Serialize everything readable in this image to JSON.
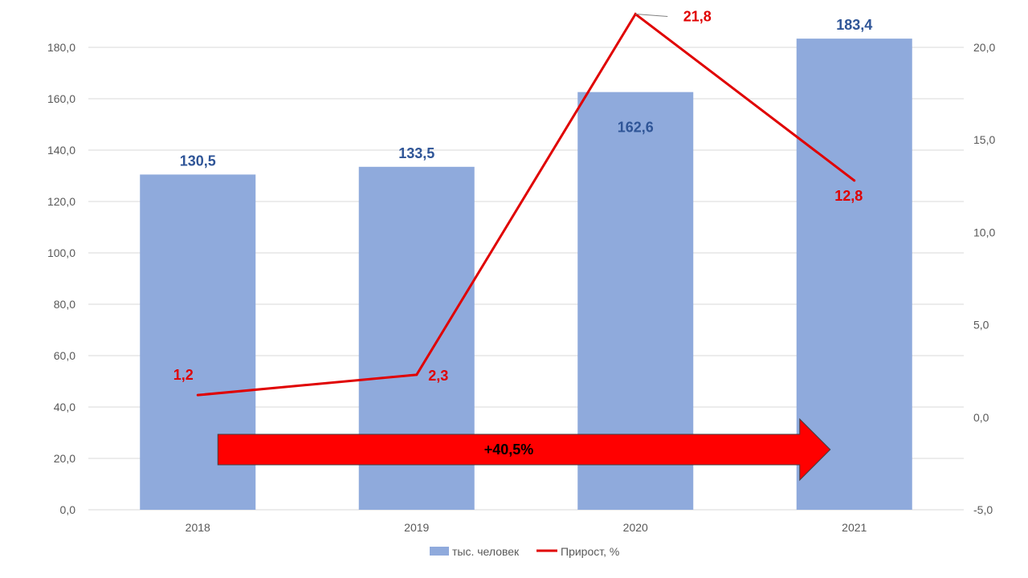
{
  "chart_data": {
    "type": "bar",
    "categories": [
      "2018",
      "2019",
      "2020",
      "2021"
    ],
    "series": [
      {
        "name": "тыс. человек",
        "type": "bar",
        "axis": "left",
        "values": [
          130.5,
          133.5,
          162.6,
          183.4
        ],
        "labels": [
          "130,5",
          "133,5",
          "162,6",
          "183,4"
        ]
      },
      {
        "name": "Прирост, %",
        "type": "line",
        "axis": "right",
        "values": [
          1.2,
          2.3,
          21.8,
          12.8
        ],
        "labels": [
          "1,2",
          "2,3",
          "21,8",
          "12,8"
        ]
      }
    ],
    "y_left": {
      "min": 0,
      "max": 180,
      "step": 20,
      "ticks": [
        "0,0",
        "20,0",
        "40,0",
        "60,0",
        "80,0",
        "100,0",
        "120,0",
        "140,0",
        "160,0",
        "180,0"
      ]
    },
    "y_right": {
      "min": -5,
      "max": 20,
      "step": 5,
      "ticks": [
        "-5,0",
        "0,0",
        "5,0",
        "10,0",
        "15,0",
        "20,0"
      ]
    },
    "annotation": {
      "text": "+40,5%",
      "from_category": "2018",
      "to_category": "2021"
    },
    "grid": true,
    "legend_position": "bottom",
    "colors": {
      "bar": "#8faadc",
      "line": "#e00000",
      "bar_label": "#2f5597",
      "arrow": "#ff0000",
      "grid": "#d9d9d9"
    }
  }
}
